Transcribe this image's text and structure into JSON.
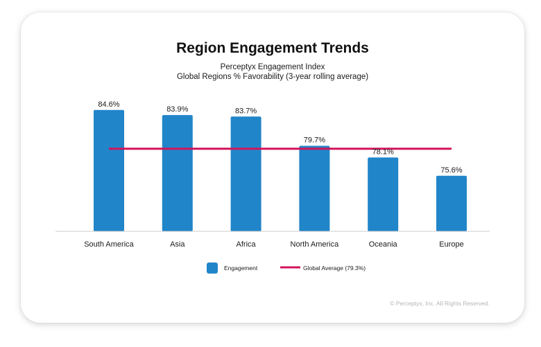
{
  "chart_data": {
    "type": "bar",
    "title": "Region Engagement Trends",
    "subtitle_lines": [
      "Perceptyx Engagement Index",
      "Global Regions % Favorability (3-year rolling average)"
    ],
    "categories": [
      "South America",
      "Asia",
      "Africa",
      "North America",
      "Oceania",
      "Europe"
    ],
    "series": [
      {
        "name": "Engagement",
        "values": [
          84.6,
          83.9,
          83.7,
          79.7,
          78.1,
          75.6
        ],
        "labels": [
          "84.6%",
          "83.9%",
          "83.7%",
          "79.7%",
          "78.1%",
          "75.6%"
        ],
        "color": "#2185c9"
      }
    ],
    "reference_line": {
      "name": "Global Average (79.3%)",
      "value": 79.3,
      "color": "#d2145a"
    },
    "ylim": [
      68,
      86
    ],
    "grid": false,
    "legend_position": "bottom"
  },
  "footer": {
    "copyright": "© Perceptyx, Inc. All Rights Reserved."
  }
}
